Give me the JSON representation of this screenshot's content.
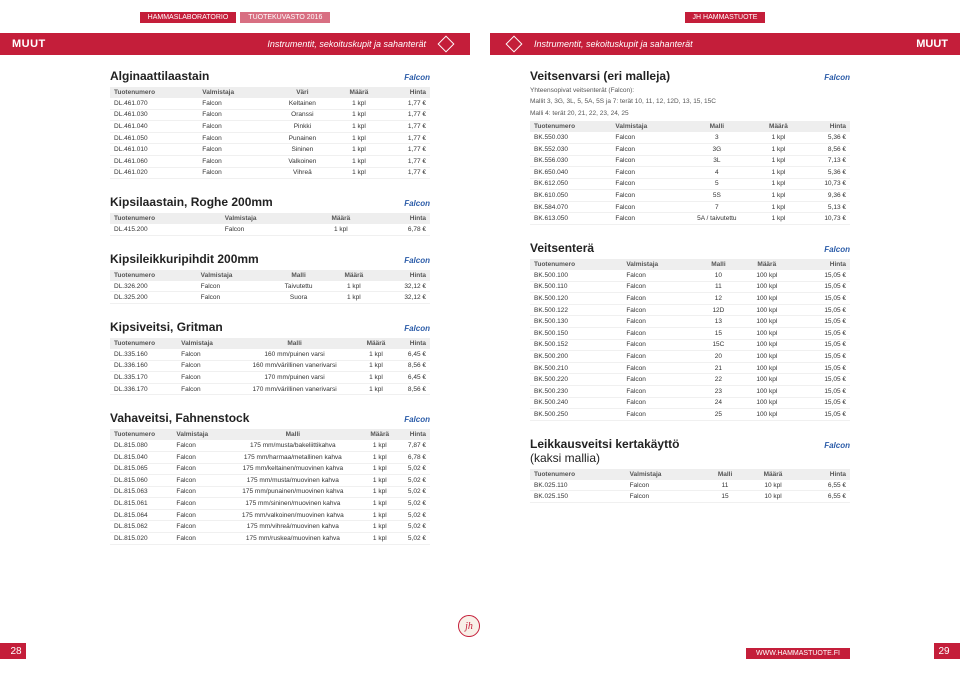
{
  "tags": {
    "lab": "HAMMASLABORATORIO",
    "catalog": "TUOTEKUVASTO 2016",
    "jh": "JH HAMMASTUOTE"
  },
  "header": {
    "muut": "MUUT",
    "sub": "Instrumentit, sekoituskupit ja sahanterät"
  },
  "brand": "Falcon",
  "pageLeft": "28",
  "pageRight": "29",
  "footerUrl": "WWW.HAMMASTUOTE.FI",
  "jhBadge": "jh",
  "cols5": [
    "Tuotenumero",
    "Valmistaja",
    "Väri",
    "Määrä",
    "Hinta"
  ],
  "cols4": [
    "Tuotenumero",
    "Valmistaja",
    "Määrä",
    "Hinta"
  ],
  "cols5m": [
    "Tuotenumero",
    "Valmistaja",
    "Malli",
    "Määrä",
    "Hinta"
  ],
  "s1": {
    "title": "Alginaattilaastain",
    "rows": [
      [
        "DL.461.070",
        "Falcon",
        "Keltainen",
        "1 kpl",
        "1,77 €"
      ],
      [
        "DL.461.030",
        "Falcon",
        "Oranssi",
        "1 kpl",
        "1,77 €"
      ],
      [
        "DL.461.040",
        "Falcon",
        "Pinkki",
        "1 kpl",
        "1,77 €"
      ],
      [
        "DL.461.050",
        "Falcon",
        "Punainen",
        "1 kpl",
        "1,77 €"
      ],
      [
        "DL.461.010",
        "Falcon",
        "Sininen",
        "1 kpl",
        "1,77 €"
      ],
      [
        "DL.461.060",
        "Falcon",
        "Valkoinen",
        "1 kpl",
        "1,77 €"
      ],
      [
        "DL.461.020",
        "Falcon",
        "Vihreä",
        "1 kpl",
        "1,77 €"
      ]
    ]
  },
  "s2": {
    "title": "Kipsilaastain, Roghe 200mm",
    "rows": [
      [
        "DL.415.200",
        "Falcon",
        "1 kpl",
        "6,78 €"
      ]
    ]
  },
  "s3": {
    "title": "Kipsileikkuripihdit 200mm",
    "rows": [
      [
        "DL.326.200",
        "Falcon",
        "Taivutettu",
        "1 kpl",
        "32,12 €"
      ],
      [
        "DL.325.200",
        "Falcon",
        "Suora",
        "1 kpl",
        "32,12 €"
      ]
    ]
  },
  "s4": {
    "title": "Kipsiveitsi, Gritman",
    "rows": [
      [
        "DL.335.160",
        "Falcon",
        "160 mm/puinen varsi",
        "1 kpl",
        "6,45 €"
      ],
      [
        "DL.336.160",
        "Falcon",
        "160 mm/värillinen vanerivarsi",
        "1 kpl",
        "8,56 €"
      ],
      [
        "DL.335.170",
        "Falcon",
        "170 mm/puinen varsi",
        "1 kpl",
        "6,45 €"
      ],
      [
        "DL.336.170",
        "Falcon",
        "170 mm/värillinen vanerivarsi",
        "1 kpl",
        "8,56 €"
      ]
    ]
  },
  "s5": {
    "title": "Vahaveitsi, Fahnenstock",
    "rows": [
      [
        "DL.815.080",
        "Falcon",
        "175 mm/musta/bakeliittikahva",
        "1 kpl",
        "7,87 €"
      ],
      [
        "DL.815.040",
        "Falcon",
        "175 mm/harmaa/metallinen kahva",
        "1 kpl",
        "6,78 €"
      ],
      [
        "DL.815.065",
        "Falcon",
        "175 mm/keltainen/muovinen kahva",
        "1 kpl",
        "5,02 €"
      ],
      [
        "DL.815.060",
        "Falcon",
        "175 mm/musta/muovinen kahva",
        "1 kpl",
        "5,02 €"
      ],
      [
        "DL.815.063",
        "Falcon",
        "175 mm/punainen/muovinen kahva",
        "1 kpl",
        "5,02 €"
      ],
      [
        "DL.815.061",
        "Falcon",
        "175 mm/sininen/muovinen kahva",
        "1 kpl",
        "5,02 €"
      ],
      [
        "DL.815.064",
        "Falcon",
        "175 mm/valkoinen/muovinen kahva",
        "1 kpl",
        "5,02 €"
      ],
      [
        "DL.815.062",
        "Falcon",
        "175 mm/vihreä/muovinen kahva",
        "1 kpl",
        "5,02 €"
      ],
      [
        "DL.815.020",
        "Falcon",
        "175 mm/ruskea/muovinen kahva",
        "1 kpl",
        "5,02 €"
      ]
    ]
  },
  "r1": {
    "title": "Veitsenvarsi (eri malleja)",
    "sub1": "Yhteensopivat veitsenterät (Falcon):",
    "sub2": "Mallit 3, 3G, 3L, 5, 5A, 5S ja 7: terät 10, 11, 12, 12D, 13, 15, 15C",
    "sub3": "Malli 4: terät 20, 21, 22, 23, 24, 25",
    "rows": [
      [
        "BK.550.030",
        "Falcon",
        "3",
        "1 kpl",
        "5,36 €"
      ],
      [
        "BK.552.030",
        "Falcon",
        "3G",
        "1 kpl",
        "8,56 €"
      ],
      [
        "BK.556.030",
        "Falcon",
        "3L",
        "1 kpl",
        "7,13 €"
      ],
      [
        "BK.650.040",
        "Falcon",
        "4",
        "1 kpl",
        "5,36 €"
      ],
      [
        "BK.612.050",
        "Falcon",
        "5",
        "1 kpl",
        "10,73 €"
      ],
      [
        "BK.610.050",
        "Falcon",
        "5S",
        "1 kpl",
        "9,36 €"
      ],
      [
        "BK.584.070",
        "Falcon",
        "7",
        "1 kpl",
        "5,13 €"
      ],
      [
        "BK.613.050",
        "Falcon",
        "5A / taivutettu",
        "1 kpl",
        "10,73 €"
      ]
    ]
  },
  "r2": {
    "title": "Veitsenterä",
    "rows": [
      [
        "BK.500.100",
        "Falcon",
        "10",
        "100 kpl",
        "15,05 €"
      ],
      [
        "BK.500.110",
        "Falcon",
        "11",
        "100 kpl",
        "15,05 €"
      ],
      [
        "BK.500.120",
        "Falcon",
        "12",
        "100 kpl",
        "15,05 €"
      ],
      [
        "BK.500.122",
        "Falcon",
        "12D",
        "100 kpl",
        "15,05 €"
      ],
      [
        "BK.500.130",
        "Falcon",
        "13",
        "100 kpl",
        "15,05 €"
      ],
      [
        "BK.500.150",
        "Falcon",
        "15",
        "100 kpl",
        "15,05 €"
      ],
      [
        "BK.500.152",
        "Falcon",
        "15C",
        "100 kpl",
        "15,05 €"
      ],
      [
        "BK.500.200",
        "Falcon",
        "20",
        "100 kpl",
        "15,05 €"
      ],
      [
        "BK.500.210",
        "Falcon",
        "21",
        "100 kpl",
        "15,05 €"
      ],
      [
        "BK.500.220",
        "Falcon",
        "22",
        "100 kpl",
        "15,05 €"
      ],
      [
        "BK.500.230",
        "Falcon",
        "23",
        "100 kpl",
        "15,05 €"
      ],
      [
        "BK.500.240",
        "Falcon",
        "24",
        "100 kpl",
        "15,05 €"
      ],
      [
        "BK.500.250",
        "Falcon",
        "25",
        "100 kpl",
        "15,05 €"
      ]
    ]
  },
  "r3": {
    "title": "Leikkausveitsi kertakäyttö",
    "title2": "(kaksi mallia)",
    "rows": [
      [
        "BK.025.110",
        "Falcon",
        "11",
        "10 kpl",
        "6,55 €"
      ],
      [
        "BK.025.150",
        "Falcon",
        "15",
        "10 kpl",
        "6,55 €"
      ]
    ]
  }
}
